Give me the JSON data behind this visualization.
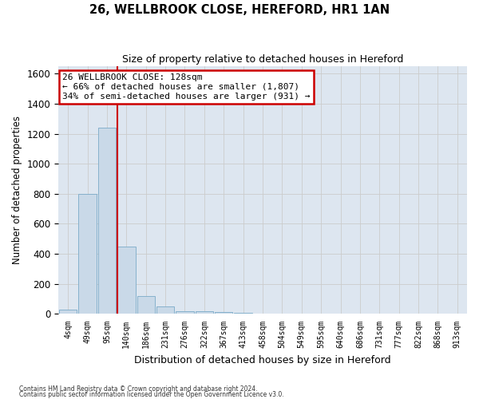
{
  "title1": "26, WELLBROOK CLOSE, HEREFORD, HR1 1AN",
  "title2": "Size of property relative to detached houses in Hereford",
  "xlabel": "Distribution of detached houses by size in Hereford",
  "ylabel": "Number of detached properties",
  "bins": [
    "4sqm",
    "49sqm",
    "95sqm",
    "140sqm",
    "186sqm",
    "231sqm",
    "276sqm",
    "322sqm",
    "367sqm",
    "413sqm",
    "458sqm",
    "504sqm",
    "549sqm",
    "595sqm",
    "640sqm",
    "686sqm",
    "731sqm",
    "777sqm",
    "822sqm",
    "868sqm",
    "913sqm"
  ],
  "values": [
    30,
    800,
    1240,
    450,
    120,
    50,
    20,
    15,
    10,
    5,
    0,
    0,
    0,
    0,
    0,
    0,
    0,
    0,
    0,
    0,
    0
  ],
  "bar_color": "#c9d9e8",
  "bar_edge_color": "#7aaac8",
  "property_line_x": 2.55,
  "property_line_color": "#cc0000",
  "annotation_text": "26 WELLBROOK CLOSE: 128sqm\n← 66% of detached houses are smaller (1,807)\n34% of semi-detached houses are larger (931) →",
  "annotation_box_color": "#ffffff",
  "annotation_box_edge": "#cc0000",
  "ylim": [
    0,
    1650
  ],
  "yticks": [
    0,
    200,
    400,
    600,
    800,
    1000,
    1200,
    1400,
    1600
  ],
  "grid_color": "#cccccc",
  "background_color": "#dde6f0",
  "fig_background": "#ffffff",
  "footer1": "Contains HM Land Registry data © Crown copyright and database right 2024.",
  "footer2": "Contains public sector information licensed under the Open Government Licence v3.0."
}
